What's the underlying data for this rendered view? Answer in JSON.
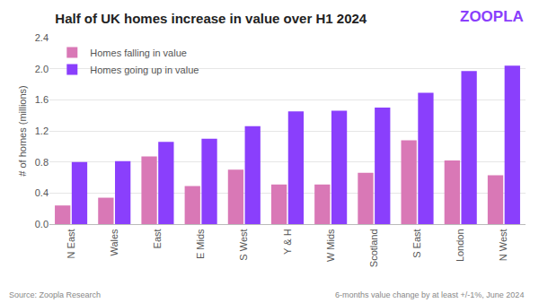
{
  "chart_data": {
    "type": "bar",
    "title": "Half of UK homes increase in value over H1 2024",
    "logo": "ZOOPLA",
    "y_label": "# of homes (millions)",
    "source": "Source: Zoopla Research",
    "note": "6-months value change by at least +/-1%, June 2024",
    "categories": [
      "N East",
      "Wales",
      "East",
      "E Mids",
      "S West",
      "Y & H",
      "W Mids",
      "Scotland",
      "S East",
      "London",
      "N West"
    ],
    "series": [
      {
        "name": "Homes falling in value",
        "color": "#d978b6",
        "values": [
          0.24,
          0.34,
          0.87,
          0.49,
          0.7,
          0.51,
          0.51,
          0.66,
          1.08,
          0.82,
          0.63
        ]
      },
      {
        "name": "Homes going up in value",
        "color": "#8a3ffc",
        "values": [
          0.8,
          0.81,
          1.06,
          1.1,
          1.26,
          1.45,
          1.46,
          1.5,
          1.69,
          1.97,
          2.04
        ]
      }
    ],
    "ylim": [
      0,
      2.4
    ],
    "yticks": [
      {
        "value": 0,
        "label": "0.0"
      },
      0.4,
      0.8,
      1.2,
      1.6,
      {
        "value": 2,
        "label": "2.0"
      },
      2.4
    ],
    "grid": true,
    "legend": "top-left"
  }
}
